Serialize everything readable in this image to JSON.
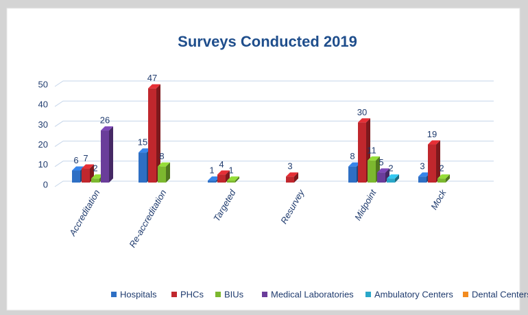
{
  "chart_data": {
    "type": "bar",
    "title": "Surveys Conducted 2019",
    "categories": [
      "Accreditation",
      "Re-accreditation",
      "Targeted",
      "Resurvey",
      "Midpoint",
      "Mock"
    ],
    "series": [
      {
        "name": "Hospitals",
        "color": "#2e6fc4",
        "values": [
          6,
          15,
          1,
          null,
          8,
          3
        ]
      },
      {
        "name": "PHCs",
        "color": "#c0272d",
        "values": [
          7,
          47,
          4,
          3,
          30,
          19
        ]
      },
      {
        "name": "BIUs",
        "color": "#7cb82f",
        "values": [
          2,
          8,
          1,
          null,
          11,
          2
        ]
      },
      {
        "name": "Medical Laboratories",
        "color": "#6a3d9a",
        "values": [
          26,
          null,
          null,
          null,
          5,
          null
        ]
      },
      {
        "name": "Ambulatory Centers",
        "color": "#2aa7c9",
        "values": [
          null,
          null,
          null,
          null,
          2,
          null
        ]
      },
      {
        "name": "Dental Centers",
        "color": "#f28b1f",
        "values": [
          null,
          null,
          null,
          null,
          null,
          null
        ]
      }
    ],
    "ylim": [
      0,
      50
    ],
    "yticks": [
      0,
      10,
      20,
      30,
      40,
      50
    ],
    "grid": true
  }
}
